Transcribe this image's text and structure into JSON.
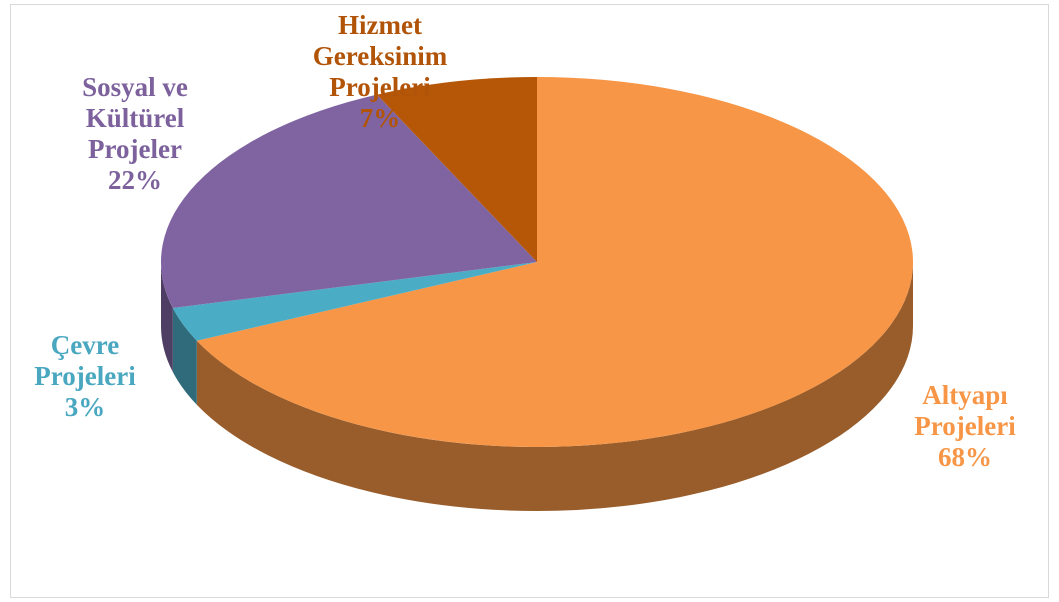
{
  "chart_data": {
    "type": "pie3d",
    "categories": [
      "Altyapı Projeleri",
      "Çevre Projeleri",
      "Sosyal ve Kültürel Projeler",
      "Hizmet Gereksinim Projeleri"
    ],
    "values": [
      68,
      3,
      22,
      7
    ],
    "value_labels": [
      "68%",
      "3%",
      "22%",
      "7%"
    ],
    "colors": [
      "#f79646",
      "#4bacc6",
      "#8064a2",
      "#b65708"
    ]
  }
}
